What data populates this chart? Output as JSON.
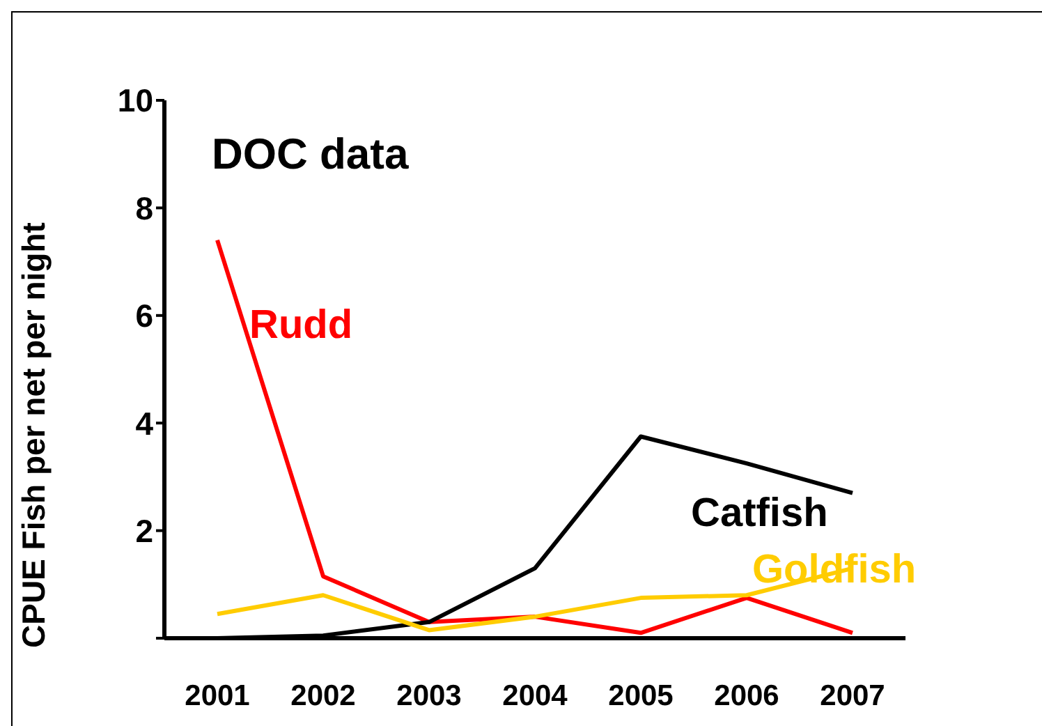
{
  "chart_data": {
    "type": "line",
    "title": "DOC data",
    "ylabel": "CPUE Fish per net per night",
    "categories": [
      "2001",
      "2002",
      "2003",
      "2004",
      "2005",
      "2006",
      "2007"
    ],
    "series": [
      {
        "name": "Rudd",
        "color": "#ff0000",
        "values": [
          7.4,
          1.15,
          0.3,
          0.4,
          0.1,
          0.75,
          0.1
        ]
      },
      {
        "name": "Catfish",
        "color": "#000000",
        "values": [
          0,
          0.05,
          0.3,
          1.3,
          3.75,
          3.25,
          2.7
        ]
      },
      {
        "name": "Goldfish",
        "color": "#ffcc00",
        "values": [
          0.45,
          0.8,
          0.15,
          0.4,
          0.75,
          0.8,
          1.3
        ]
      }
    ],
    "ylim": [
      0,
      10
    ],
    "yticks": [
      {
        "value": 0,
        "label": null
      },
      2,
      4,
      6,
      8,
      10
    ],
    "grid": false,
    "legend": false,
    "marker": "none",
    "line_style": "solid"
  }
}
